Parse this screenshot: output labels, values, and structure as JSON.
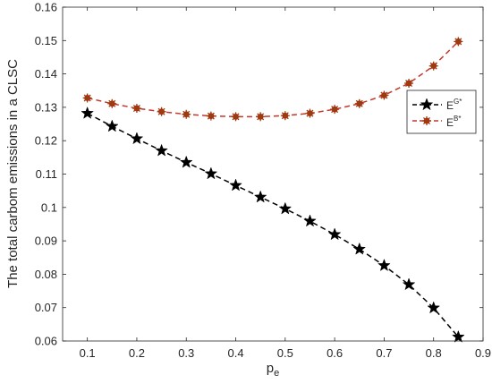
{
  "chart_data": {
    "type": "line",
    "xlabel_main": "p",
    "xlabel_sub": "e",
    "ylabel": "The total carbom emissions in a CLSC",
    "xlim": [
      0.05,
      0.9
    ],
    "ylim": [
      0.06,
      0.16
    ],
    "xticks": [
      "0.1",
      "0.2",
      "0.3",
      "0.4",
      "0.5",
      "0.6",
      "0.7",
      "0.8",
      "0.9"
    ],
    "yticks": [
      "0.06",
      "0.07",
      "0.08",
      "0.09",
      "0.1",
      "0.11",
      "0.12",
      "0.13",
      "0.14",
      "0.15",
      "0.16"
    ],
    "grid": false,
    "legend_position": "right-middle",
    "x": [
      0.1,
      0.15,
      0.2,
      0.25,
      0.3,
      0.35,
      0.4,
      0.45,
      0.5,
      0.55,
      0.6,
      0.65,
      0.7,
      0.75,
      0.8,
      0.85
    ],
    "series": [
      {
        "legend_base": "E",
        "legend_sup": "G*",
        "line_color": "#000000",
        "marker": "star",
        "marker_color": "#000000",
        "values": [
          0.1282,
          0.1243,
          0.1206,
          0.117,
          0.1135,
          0.1101,
          0.1066,
          0.1031,
          0.0996,
          0.0959,
          0.0919,
          0.0875,
          0.0826,
          0.0769,
          0.0699,
          0.0612
        ]
      },
      {
        "legend_base": "E",
        "legend_sup": "B*",
        "line_color": "#c0392b",
        "marker": "asterisk",
        "marker_color": "#8b4513",
        "marker_fill": "#ff0000",
        "values": [
          0.1328,
          0.1311,
          0.1297,
          0.1287,
          0.1279,
          0.1274,
          0.1272,
          0.1272,
          0.1275,
          0.1282,
          0.1294,
          0.1311,
          0.1336,
          0.1372,
          0.1424,
          0.1497
        ]
      }
    ]
  }
}
